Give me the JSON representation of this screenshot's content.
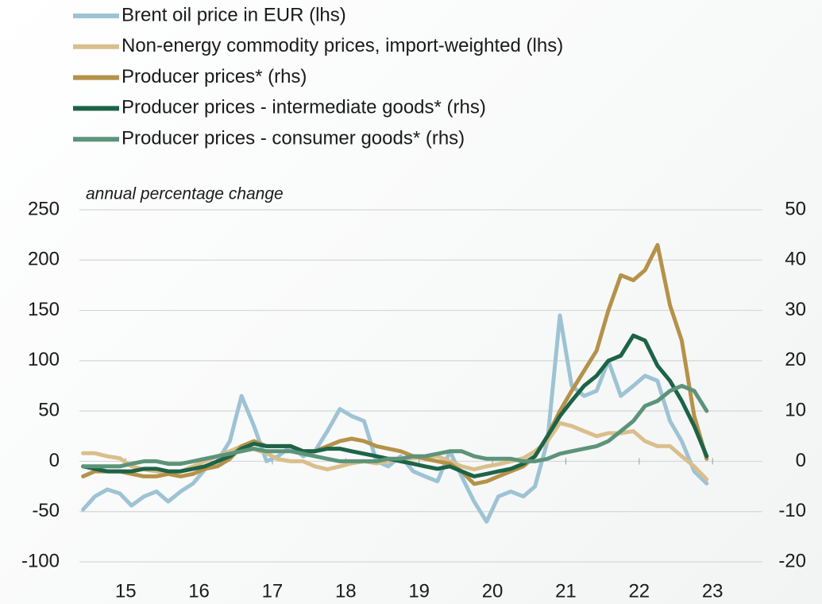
{
  "chart_data": {
    "type": "line",
    "annotation": "annual percentage change",
    "x": [
      14.92,
      15.08,
      15.25,
      15.42,
      15.58,
      15.75,
      15.92,
      16.08,
      16.25,
      16.42,
      16.58,
      16.75,
      16.92,
      17.08,
      17.25,
      17.42,
      17.58,
      17.75,
      17.92,
      18.08,
      18.25,
      18.42,
      18.58,
      18.75,
      18.92,
      19.08,
      19.25,
      19.42,
      19.58,
      19.75,
      19.92,
      20.08,
      20.25,
      20.42,
      20.58,
      20.75,
      20.92,
      21.08,
      21.25,
      21.42,
      21.58,
      21.75,
      21.92,
      22.08,
      22.25,
      22.42,
      22.58,
      22.75,
      22.92,
      23.08,
      23.25,
      23.42
    ],
    "xlim": [
      14.87,
      24.18
    ],
    "xticks": [
      {
        "value": 15.5,
        "label": "15"
      },
      {
        "value": 16.5,
        "label": "16"
      },
      {
        "value": 17.5,
        "label": "17"
      },
      {
        "value": 18.5,
        "label": "18"
      },
      {
        "value": 19.5,
        "label": "19"
      },
      {
        "value": 20.5,
        "label": "20"
      },
      {
        "value": 21.5,
        "label": "21"
      },
      {
        "value": 22.5,
        "label": "22"
      },
      {
        "value": 23.5,
        "label": "23"
      }
    ],
    "ylim": [
      -100,
      250
    ],
    "yticks": [
      -100,
      -50,
      0,
      50,
      100,
      150,
      200,
      250
    ],
    "y2lim": [
      -20,
      50
    ],
    "y2ticks": [
      -20,
      -10,
      0,
      10,
      20,
      30,
      40,
      50
    ],
    "grid": true,
    "legend": "top",
    "series": [
      {
        "name": "Brent oil price in EUR (lhs)",
        "color": "#9dc3d4",
        "values": [
          -48,
          -35,
          -28,
          -32,
          -44,
          -35,
          -30,
          -40,
          -30,
          -22,
          -8,
          0,
          20,
          65,
          35,
          0,
          5,
          15,
          5,
          10,
          30,
          52,
          45,
          40,
          0,
          -5,
          5,
          -10,
          -15,
          -20,
          10,
          -15,
          -40,
          -60,
          -35,
          -30,
          -35,
          -25,
          20,
          145,
          75,
          65,
          70,
          100,
          65,
          75,
          85,
          80,
          40,
          20,
          -10,
          -22
        ]
      },
      {
        "name": "Non-energy commodity prices, import-weighted (lhs)",
        "color": "#d9bf8c",
        "values": [
          8,
          8,
          5,
          3,
          -5,
          -8,
          -10,
          -12,
          -10,
          -5,
          0,
          5,
          10,
          15,
          12,
          8,
          2,
          0,
          0,
          -5,
          -8,
          -5,
          -2,
          0,
          -2,
          0,
          2,
          3,
          5,
          5,
          0,
          -5,
          -8,
          -5,
          -3,
          0,
          3,
          10,
          20,
          38,
          35,
          30,
          25,
          28,
          28,
          30,
          20,
          15,
          15,
          5,
          -5,
          -18
        ]
      },
      {
        "name": "Producer prices* (rhs)",
        "color": "#b5924a",
        "axis": "y2",
        "values": [
          -3,
          -2,
          -2,
          -2,
          -2.5,
          -3,
          -3,
          -2.5,
          -3,
          -2.5,
          -1.5,
          -1,
          0.5,
          3,
          4,
          3,
          3,
          3,
          2,
          2,
          3,
          4,
          4.5,
          4,
          3,
          2.5,
          2,
          1,
          0.5,
          0,
          -0.5,
          -2,
          -4.5,
          -4,
          -3,
          -2,
          -1,
          1,
          5,
          10,
          14,
          18,
          22,
          30,
          37,
          36,
          38,
          43,
          31,
          24,
          9,
          0.5
        ]
      },
      {
        "name": "Producer prices - intermediate goods* (rhs)",
        "color": "#1d6347",
        "axis": "y2",
        "values": [
          -1,
          -1.5,
          -2,
          -2,
          -2,
          -1.5,
          -1.5,
          -2,
          -2,
          -1.5,
          -1,
          0,
          1,
          2.5,
          3.5,
          3,
          3,
          3,
          2,
          2,
          2.5,
          2.5,
          2,
          1.5,
          1,
          0.5,
          0,
          -0.5,
          -1,
          -1.5,
          -1,
          -2,
          -3,
          -2.5,
          -2,
          -1.5,
          -0.5,
          1,
          5,
          9,
          12,
          15,
          17,
          20,
          21,
          25,
          24,
          19,
          16,
          12,
          7,
          1
        ]
      },
      {
        "name": "Producer prices - consumer goods* (rhs)",
        "color": "#5c9479",
        "axis": "y2",
        "values": [
          -1,
          -1,
          -1,
          -1,
          -0.5,
          0,
          0,
          -0.5,
          -0.5,
          0,
          0.5,
          1,
          1.5,
          2,
          2.5,
          2,
          2,
          2,
          1.5,
          1,
          0.5,
          0,
          0,
          0,
          0,
          0.5,
          0.5,
          1,
          1,
          1.5,
          2,
          2,
          1,
          0.5,
          0.5,
          0.5,
          0,
          0,
          0.5,
          1.5,
          2,
          2.5,
          3,
          4,
          6,
          8,
          11,
          12,
          14,
          15,
          14,
          10
        ]
      }
    ]
  }
}
